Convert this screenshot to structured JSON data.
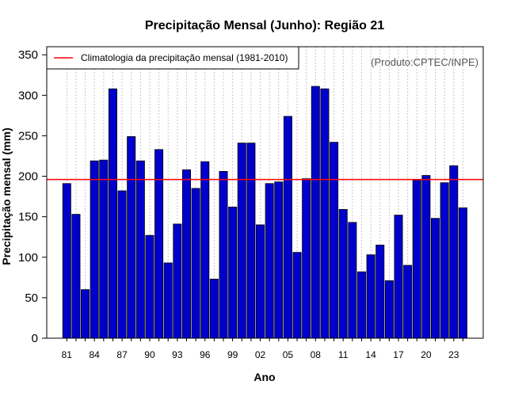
{
  "chart_data": {
    "type": "bar",
    "title": "Precipitação Mensal (Junho): Região 21",
    "xlabel": "Ano",
    "ylabel": "Precipitação mensal (mm)",
    "ylim": [
      0,
      360
    ],
    "yticks": [
      0,
      50,
      100,
      150,
      200,
      250,
      300,
      350
    ],
    "categories": [
      "81",
      "82",
      "83",
      "84",
      "85",
      "86",
      "87",
      "88",
      "89",
      "90",
      "91",
      "92",
      "93",
      "94",
      "95",
      "96",
      "97",
      "98",
      "99",
      "00",
      "01",
      "02",
      "03",
      "04",
      "05",
      "06",
      "07",
      "08",
      "09",
      "10",
      "11",
      "12",
      "13",
      "14",
      "15",
      "16",
      "17",
      "18",
      "19",
      "20",
      "21",
      "22",
      "23",
      "24"
    ],
    "xtick_labels": [
      "81",
      "84",
      "87",
      "90",
      "93",
      "96",
      "99",
      "02",
      "05",
      "08",
      "11",
      "14",
      "17",
      "20",
      "23"
    ],
    "values": [
      191,
      153,
      60,
      219,
      220,
      308,
      182,
      249,
      219,
      127,
      233,
      93,
      141,
      208,
      185,
      218,
      73,
      206,
      162,
      241,
      241,
      140,
      191,
      193,
      274,
      106,
      197,
      311,
      308,
      242,
      159,
      143,
      82,
      103,
      115,
      71,
      152,
      90,
      195,
      201,
      148,
      192,
      213,
      161
    ],
    "bar_color": "#0000CD",
    "climatology": {
      "value": 196,
      "label": "Climatologia da precipitação mensal (1981-2010)",
      "color": "#FF0000"
    },
    "legend_position": "top-left",
    "grid": "vertical-dotted",
    "source": "(Produto:CPTEC/INPE)"
  }
}
